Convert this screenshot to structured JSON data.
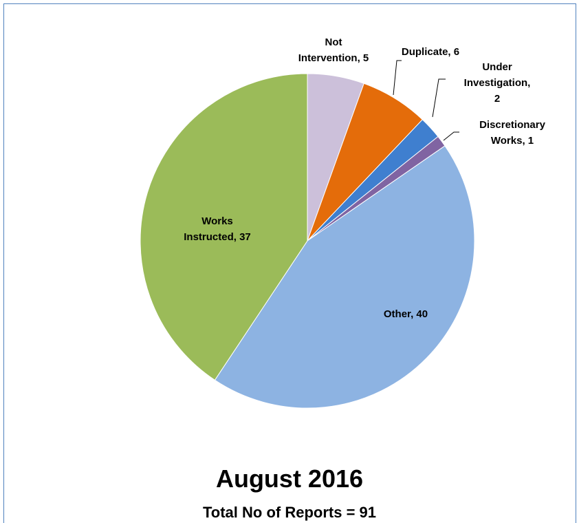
{
  "chart_data": {
    "type": "pie",
    "title": "August 2016",
    "subtitle": "Total No of Reports = 91",
    "values": [
      5,
      6,
      2,
      1,
      40,
      37
    ],
    "value_labels": [
      [
        "Not",
        "Intervention, 5"
      ],
      [
        "Duplicate, 6"
      ],
      [
        "Under",
        "Investigation,",
        "2"
      ],
      [
        "Discretionary",
        "Works, 1"
      ],
      [
        "Other, 40"
      ],
      [
        "Works",
        "Instructed, 37"
      ]
    ],
    "colors": [
      "#ccc0da",
      "#e46c0a",
      "#3f7fcf",
      "#8064a2",
      "#8db3e2",
      "#9bbb59"
    ],
    "start_angle": 0,
    "direction": "clockwise"
  }
}
